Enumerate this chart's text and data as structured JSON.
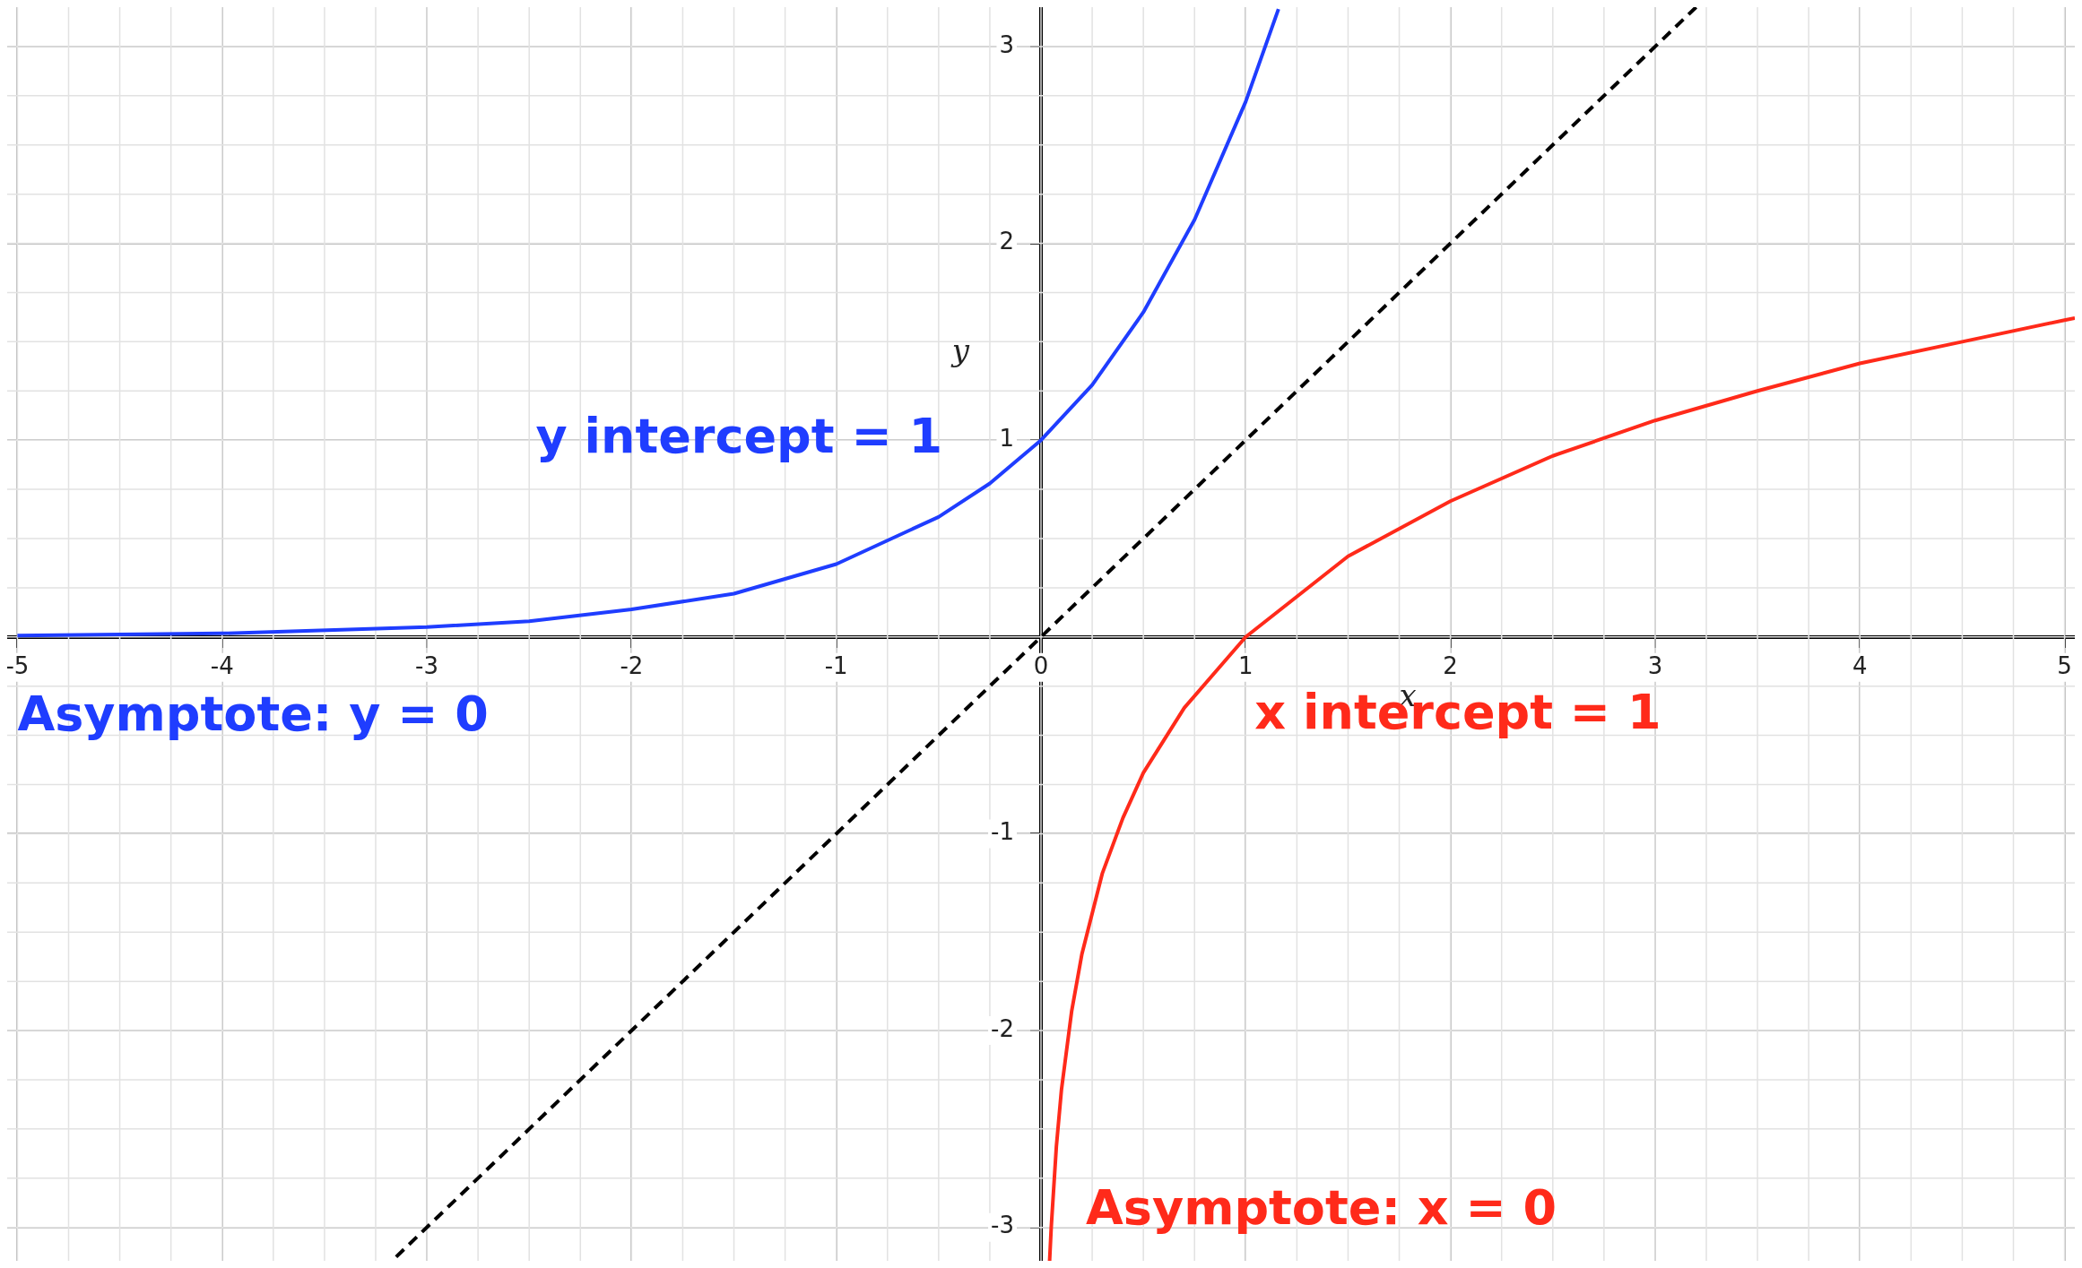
{
  "chart_data": {
    "type": "line",
    "xlabel": "x",
    "ylabel": "y",
    "xlim": [
      -5.05,
      5.05
    ],
    "ylim": [
      -3.17,
      3.2
    ],
    "xticks": [
      -5,
      -4,
      -3,
      -2,
      -1,
      0,
      1,
      2,
      3,
      4,
      5
    ],
    "yticks": [
      -3,
      -2,
      -1,
      1,
      2,
      3
    ],
    "grid": true,
    "legend": false,
    "marker": "none",
    "series": [
      {
        "color": "#1f3dff",
        "x": [
          -5,
          -4,
          -3,
          -2.5,
          -2,
          -1.5,
          -1,
          -0.5,
          -0.25,
          0,
          0.25,
          0.5,
          0.75,
          1,
          1.16
        ],
        "values": [
          0.007,
          0.018,
          0.05,
          0.08,
          0.14,
          0.22,
          0.37,
          0.61,
          0.78,
          1,
          1.28,
          1.65,
          2.12,
          2.72,
          3.19
        ]
      },
      {
        "color": "#ff2a1a",
        "x": [
          0.042,
          0.05,
          0.075,
          0.1,
          0.15,
          0.2,
          0.3,
          0.4,
          0.5,
          0.7,
          1,
          1.5,
          2,
          2.5,
          3,
          3.5,
          4,
          4.5,
          5,
          5.05
        ],
        "values": [
          -3.17,
          -3.0,
          -2.59,
          -2.3,
          -1.9,
          -1.61,
          -1.2,
          -0.92,
          -0.69,
          -0.36,
          0,
          0.41,
          0.69,
          0.92,
          1.1,
          1.25,
          1.39,
          1.5,
          1.61,
          1.62
        ]
      },
      {
        "color": "#000000",
        "line_style": "dashed",
        "x": [
          -3.15,
          3.2
        ],
        "values": [
          -3.15,
          3.2
        ]
      }
    ],
    "annotations": [
      {
        "text": "y intercept = 1",
        "x": 0,
        "y": 1
      },
      {
        "text": "x intercept = 1",
        "x": 1,
        "y": 0
      },
      {
        "text": "Asymptote: y = 0",
        "x": -5,
        "y": 0
      },
      "Asymptote: x = 0"
    ]
  }
}
